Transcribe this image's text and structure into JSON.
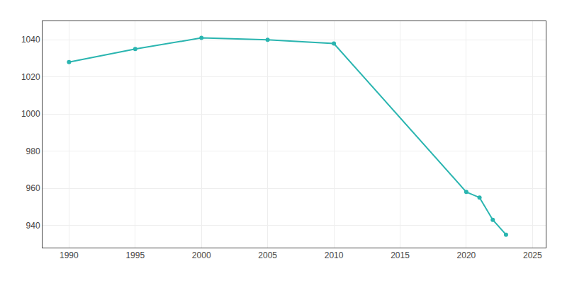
{
  "chart_data": {
    "type": "line",
    "x": [
      1990,
      1995,
      2000,
      2005,
      2010,
      2020,
      2021,
      2022,
      2023
    ],
    "values": [
      1028,
      1035,
      1041,
      1040,
      1038,
      958,
      955,
      943,
      935
    ],
    "color": "#2ab5b0",
    "marker": "circle",
    "xlim": [
      1988,
      2026
    ],
    "xticks": [
      1990,
      1995,
      2000,
      2005,
      2010,
      2015,
      2020,
      2025
    ],
    "ylim": [
      928,
      1050
    ],
    "yticks": [
      940,
      960,
      980,
      1000,
      1020,
      1040
    ],
    "grid": true
  }
}
